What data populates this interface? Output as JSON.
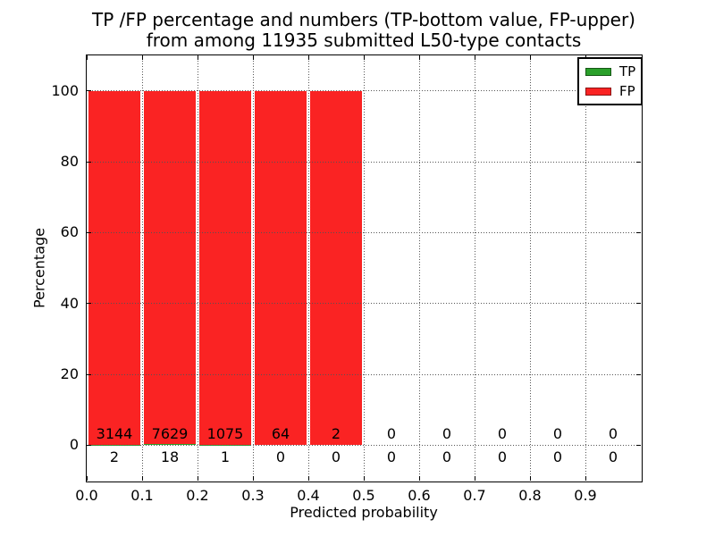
{
  "title": {
    "line1": "TP /FP percentage and numbers (TP-bottom value, FP-upper)",
    "line2": "from among 11935 submitted L50-type contacts"
  },
  "axes": {
    "xlabel": "Predicted probability",
    "ylabel": "Percentage"
  },
  "legend": {
    "position": "upper right",
    "entries": [
      {
        "label": "TP",
        "color": "#2aa02a"
      },
      {
        "label": "FP",
        "color": "#fa2323"
      }
    ]
  },
  "chart_data": {
    "type": "bar",
    "stacked": true,
    "title": "TP /FP percentage and numbers (TP-bottom value, FP-upper)\nfrom among 11935 submitted L50-type contacts",
    "xlabel": "Predicted probability",
    "ylabel": "Percentage",
    "xlim": [
      0.0,
      1.0
    ],
    "ylim": [
      -10,
      110
    ],
    "x_ticks": [
      "0.0",
      "0.1",
      "0.2",
      "0.3",
      "0.4",
      "0.5",
      "0.6",
      "0.7",
      "0.8",
      "0.9"
    ],
    "y_ticks": [
      0,
      20,
      40,
      60,
      80,
      100
    ],
    "grid": true,
    "grid_style": "dotted",
    "legend_position": "upper right",
    "bin_edges": [
      0.0,
      0.1,
      0.2,
      0.3,
      0.4,
      0.5,
      0.6,
      0.7,
      0.8,
      0.9,
      1.0
    ],
    "bar_width": 0.095,
    "total_contacts": 11935,
    "series": [
      {
        "name": "TP",
        "color": "#2aa02a",
        "counts": [
          2,
          18,
          1,
          0,
          0,
          0,
          0,
          0,
          0,
          0
        ],
        "percent": [
          0.06,
          0.24,
          0.09,
          0,
          0,
          null,
          null,
          null,
          null,
          null
        ]
      },
      {
        "name": "FP",
        "color": "#fa2323",
        "counts": [
          3144,
          7629,
          1075,
          64,
          2,
          0,
          0,
          0,
          0,
          0
        ],
        "percent": [
          99.94,
          99.76,
          99.91,
          100,
          100,
          null,
          null,
          null,
          null,
          null
        ]
      }
    ]
  }
}
